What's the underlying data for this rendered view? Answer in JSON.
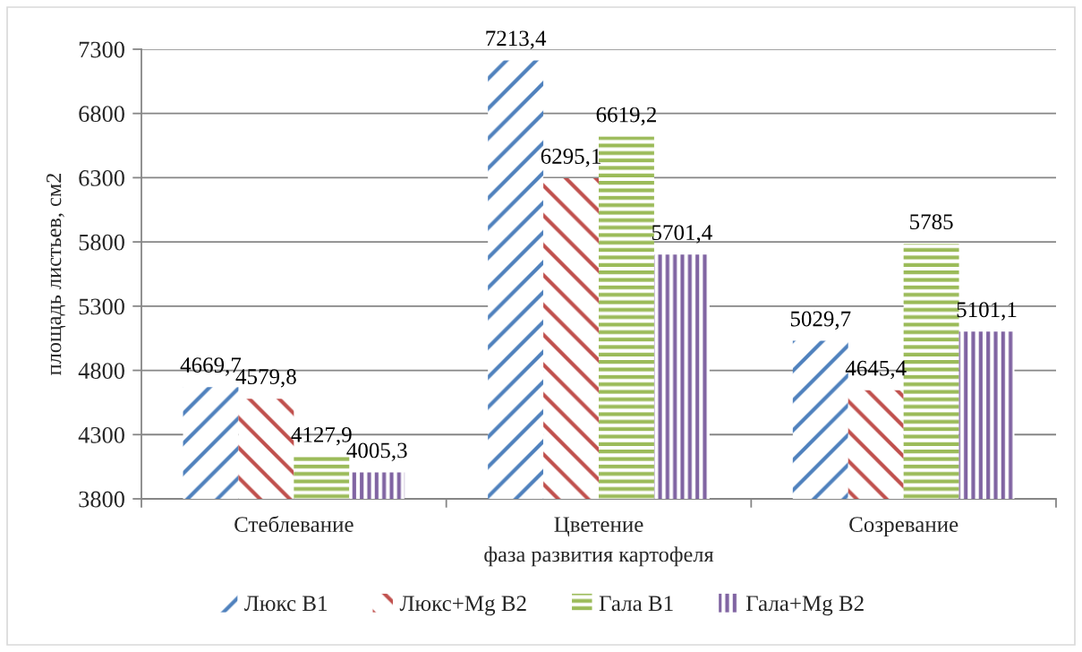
{
  "chart_data": {
    "type": "bar",
    "xlabel": "фаза развития картофеля",
    "ylabel": "площадь листьев, см2",
    "categories": [
      "Стеблевание",
      "Цветение",
      "Созревание"
    ],
    "series": [
      {
        "name": "Люкс В1",
        "color": "#4f81bd",
        "values": [
          4669.7,
          7213.4,
          5029.7
        ],
        "value_labels": [
          "4669,7",
          "7213,4",
          "5029,7"
        ]
      },
      {
        "name": "Люкс+Mg В2",
        "color": "#c0504d",
        "values": [
          4579.8,
          6295.1,
          4645.4
        ],
        "value_labels": [
          "4579,8",
          "6295,1",
          "4645,4"
        ]
      },
      {
        "name": "Гала В1",
        "color": "#9bbb59",
        "values": [
          4127.9,
          6619.2,
          5785
        ],
        "value_labels": [
          "4127,9",
          "6619,2",
          "5785"
        ]
      },
      {
        "name": "Гала+Mg В2",
        "color": "#8064a2",
        "values": [
          4005.3,
          5701.4,
          5101.1
        ],
        "value_labels": [
          "4005,3",
          "5701,4",
          "5101,1"
        ]
      }
    ],
    "ylim": [
      3800,
      7300
    ],
    "yticks": [
      3800,
      4300,
      4800,
      5300,
      5800,
      6300,
      6800,
      7300
    ],
    "grid": "y",
    "legend": "bottom"
  }
}
